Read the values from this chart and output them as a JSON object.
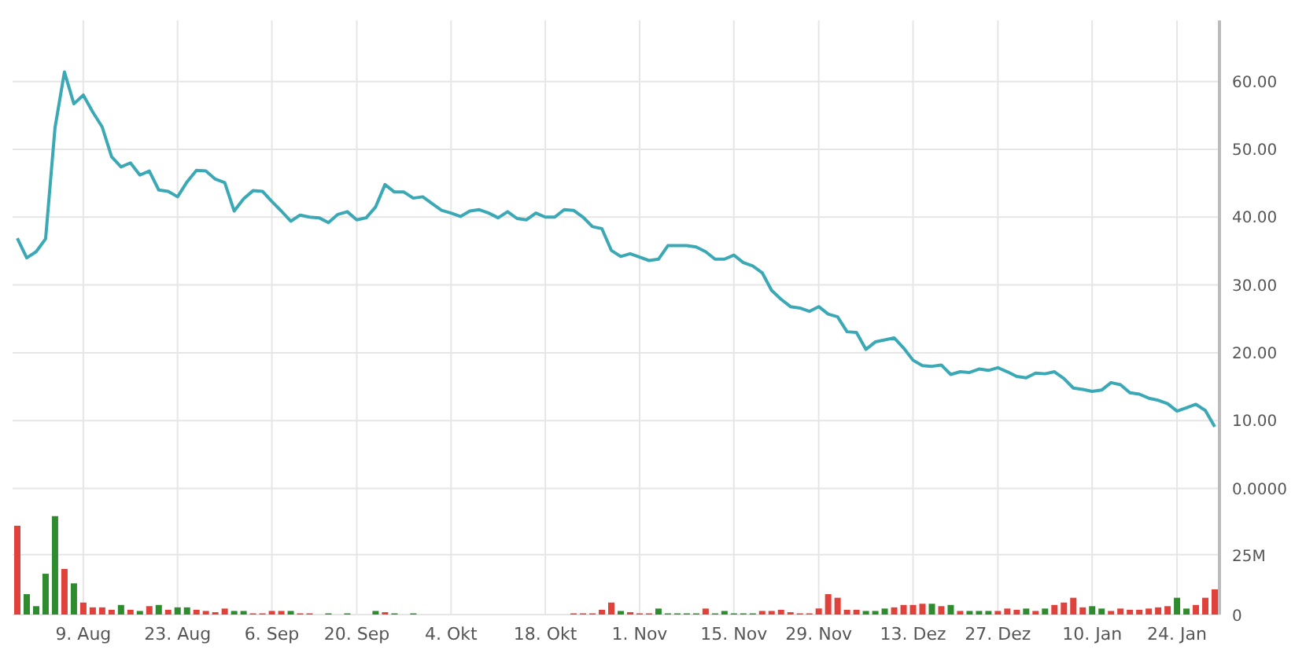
{
  "chart_data": {
    "type": "line",
    "categories": [
      null,
      null,
      null,
      null,
      null,
      null,
      null,
      "9. Aug",
      null,
      null,
      null,
      null,
      null,
      null,
      null,
      null,
      null,
      "23. Aug",
      null,
      null,
      null,
      null,
      null,
      null,
      null,
      null,
      null,
      "6. Sep",
      null,
      null,
      null,
      null,
      null,
      null,
      null,
      null,
      "20. Sep",
      null,
      null,
      null,
      null,
      null,
      null,
      null,
      null,
      null,
      "4. Okt",
      null,
      null,
      null,
      null,
      null,
      null,
      null,
      null,
      null,
      "18. Okt",
      null,
      null,
      null,
      null,
      null,
      null,
      null,
      null,
      null,
      "1. Nov",
      null,
      null,
      null,
      null,
      null,
      null,
      null,
      null,
      null,
      "15. Nov",
      null,
      null,
      null,
      null,
      null,
      null,
      null,
      null,
      "29. Nov",
      null,
      null,
      null,
      null,
      null,
      null,
      null,
      null,
      null,
      "13. Dez",
      null,
      null,
      null,
      null,
      null,
      null,
      null,
      null,
      "27. Dez",
      null,
      null,
      null,
      null,
      null,
      null,
      null,
      null,
      null,
      "10. Jan",
      null,
      null,
      null,
      null,
      null,
      null,
      null,
      null,
      "24. Jan",
      null,
      null,
      null,
      null
    ],
    "series": [
      {
        "color": "#3aa9b5",
        "values": [
          36.9,
          34.0,
          34.9,
          36.8,
          53.2,
          61.4,
          56.7,
          58.0,
          55.5,
          53.3,
          48.9,
          47.4,
          48.0,
          46.2,
          46.8,
          44.0,
          43.8,
          43.0,
          45.2,
          46.9,
          46.8,
          45.6,
          45.1,
          40.9,
          42.7,
          43.9,
          43.8,
          42.3,
          40.9,
          39.4,
          40.3,
          40.0,
          39.9,
          39.2,
          40.4,
          40.8,
          39.6,
          39.9,
          41.5,
          44.8,
          43.7,
          43.7,
          42.8,
          43.0,
          42.0,
          41.0,
          40.6,
          40.1,
          40.9,
          41.1,
          40.6,
          39.9,
          40.8,
          39.8,
          39.6,
          40.6,
          40.0,
          40.0,
          41.1,
          41.0,
          40.0,
          38.6,
          38.3,
          35.1,
          34.2,
          34.6,
          34.1,
          33.6,
          33.8,
          35.8,
          35.8,
          35.8,
          35.6,
          34.9,
          33.8,
          33.8,
          34.4,
          33.3,
          32.8,
          31.8,
          29.2,
          27.9,
          26.8,
          26.6,
          26.1,
          26.8,
          25.7,
          25.3,
          23.1,
          23.0,
          20.5,
          21.6,
          21.9,
          22.2,
          20.7,
          18.9,
          18.1,
          18.0,
          18.2,
          16.8,
          17.2,
          17.1,
          17.6,
          17.4,
          17.8,
          17.2,
          16.5,
          16.3,
          17.0,
          16.9,
          17.2,
          16.2,
          14.8,
          14.6,
          14.3,
          14.5,
          15.6,
          15.3,
          14.1,
          13.9,
          13.3,
          13.0,
          12.5,
          11.4,
          11.9,
          12.4,
          11.5,
          9.1
        ]
      },
      {
        "type": "bar",
        "axis": "y2",
        "values": [
          37,
          8.5,
          3.5,
          17,
          41,
          19,
          13,
          5,
          3,
          3,
          2,
          4,
          2,
          1.5,
          3.5,
          4,
          2,
          3,
          3,
          2,
          1.5,
          1,
          2.5,
          1.5,
          1.5,
          0.5,
          0.5,
          1.5,
          1.5,
          1.5,
          0.5,
          0.5,
          0,
          0.5,
          0,
          0.5,
          0,
          0,
          1.5,
          1,
          0.5,
          0,
          0.5,
          0,
          0,
          0,
          0,
          0,
          0,
          0,
          0,
          0,
          0,
          0,
          0,
          0,
          0,
          0,
          0,
          0.5,
          0.5,
          0.5,
          2,
          5,
          1.5,
          1,
          0.5,
          0.5,
          2.5,
          0.5,
          0.5,
          0.5,
          0.5,
          2.5,
          0.5,
          1.5,
          0.5,
          0.5,
          0.5,
          1.5,
          1.5,
          2,
          1,
          0.5,
          0.5,
          2.5,
          8.5,
          7,
          2,
          2,
          1.5,
          1.5,
          2.5,
          3,
          4,
          4,
          4.5,
          4.5,
          3.5,
          4,
          1.5,
          1.5,
          1.5,
          1.5,
          1.5,
          2.5,
          2,
          2.5,
          1.5,
          2.5,
          4,
          5,
          7,
          3,
          3.5,
          2.5,
          1.5,
          2.5,
          2,
          2,
          2.5,
          3,
          3.5,
          7,
          2.5,
          4,
          7,
          10.5
        ],
        "colors": [
          "#e0413a",
          "#2e8b2e",
          "#2e8b2e",
          "#2e8b2e",
          "#2e8b2e",
          "#e0413a",
          "#2e8b2e",
          "#e0413a",
          "#e0413a",
          "#e0413a",
          "#e0413a",
          "#2e8b2e",
          "#e0413a",
          "#2e8b2e",
          "#e0413a",
          "#2e8b2e",
          "#e0413a",
          "#2e8b2e",
          "#2e8b2e",
          "#e0413a",
          "#e0413a",
          "#e0413a",
          "#e0413a",
          "#2e8b2e",
          "#2e8b2e",
          "#e0413a",
          "#e0413a",
          "#e0413a",
          "#e0413a",
          "#2e8b2e",
          "#e0413a",
          "#e0413a",
          "#e0413a",
          "#2e8b2e",
          "#e0413a",
          "#2e8b2e",
          "#e0413a",
          "#e0413a",
          "#2e8b2e",
          "#e0413a",
          "#2e8b2e",
          "#e0413a",
          "#2e8b2e",
          "#e0413a",
          "#e0413a",
          "#e0413a",
          "#e0413a",
          "#e0413a",
          "#e0413a",
          "#e0413a",
          "#e0413a",
          "#e0413a",
          "#e0413a",
          "#e0413a",
          "#e0413a",
          "#e0413a",
          "#e0413a",
          "#e0413a",
          "#e0413a",
          "#e0413a",
          "#e0413a",
          "#e0413a",
          "#e0413a",
          "#e0413a",
          "#2e8b2e",
          "#e0413a",
          "#e0413a",
          "#e0413a",
          "#2e8b2e",
          "#2e8b2e",
          "#2e8b2e",
          "#2e8b2e",
          "#2e8b2e",
          "#e0413a",
          "#2e8b2e",
          "#2e8b2e",
          "#2e8b2e",
          "#2e8b2e",
          "#2e8b2e",
          "#e0413a",
          "#e0413a",
          "#e0413a",
          "#e0413a",
          "#e0413a",
          "#e0413a",
          "#e0413a",
          "#e0413a",
          "#e0413a",
          "#e0413a",
          "#e0413a",
          "#2e8b2e",
          "#2e8b2e",
          "#2e8b2e",
          "#e0413a",
          "#e0413a",
          "#e0413a",
          "#e0413a",
          "#2e8b2e",
          "#e0413a",
          "#2e8b2e",
          "#e0413a",
          "#2e8b2e",
          "#2e8b2e",
          "#2e8b2e",
          "#e0413a",
          "#e0413a",
          "#e0413a",
          "#2e8b2e",
          "#e0413a",
          "#2e8b2e",
          "#e0413a",
          "#e0413a",
          "#e0413a",
          "#e0413a",
          "#2e8b2e",
          "#2e8b2e",
          "#e0413a",
          "#e0413a",
          "#e0413a",
          "#e0413a",
          "#e0413a",
          "#e0413a",
          "#e0413a",
          "#2e8b2e",
          "#2e8b2e",
          "#e0413a",
          "#e0413a",
          "#e0413a"
        ]
      }
    ],
    "marker": "none",
    "line_style": "solid",
    "ylim": [
      -18.6,
      69
    ],
    "yticks": [
      {
        "value": 0,
        "label": "0.0000"
      },
      {
        "value": 10,
        "label": "10.00"
      },
      {
        "value": 20,
        "label": "20.00"
      },
      {
        "value": 30,
        "label": "30.00"
      },
      {
        "value": 40,
        "label": "40.00"
      },
      {
        "value": 50,
        "label": "50.00"
      },
      {
        "value": 60,
        "label": "60.00"
      }
    ],
    "y2lim": [
      0,
      247.5
    ],
    "y2ticks": [
      {
        "value": 0,
        "label": "0"
      },
      {
        "value": 25,
        "label": "25M"
      }
    ],
    "grid": true
  }
}
